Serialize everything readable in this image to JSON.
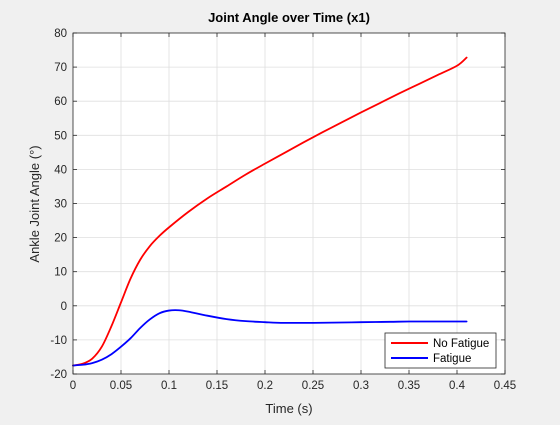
{
  "figure": {
    "background": "#f0f0f0"
  },
  "chart_data": {
    "type": "line",
    "title": "Joint Angle over Time (x1)",
    "xlabel": "Time (s)",
    "ylabel": "Ankle Joint Angle (°)",
    "xlim": [
      0,
      0.45
    ],
    "ylim": [
      -20,
      80
    ],
    "xticks": [
      0,
      0.05,
      0.1,
      0.15,
      0.2,
      0.25,
      0.3,
      0.35,
      0.4,
      0.45
    ],
    "xtick_labels": [
      "0",
      "0.05",
      "0.1",
      "0.15",
      "0.2",
      "0.25",
      "0.3",
      "0.35",
      "0.4",
      "0.45"
    ],
    "yticks": [
      -20,
      -10,
      0,
      10,
      20,
      30,
      40,
      50,
      60,
      70,
      80
    ],
    "ytick_labels": [
      "-20",
      "-10",
      "0",
      "10",
      "20",
      "30",
      "40",
      "50",
      "60",
      "70",
      "80"
    ],
    "grid": true,
    "legend_position": "bottom-right",
    "series": [
      {
        "name": "No Fatigue",
        "color": "#ff0000",
        "x": [
          0,
          0.01,
          0.02,
          0.03,
          0.04,
          0.05,
          0.06,
          0.07,
          0.08,
          0.09,
          0.1,
          0.12,
          0.14,
          0.16,
          0.18,
          0.2,
          0.22,
          0.24,
          0.26,
          0.28,
          0.3,
          0.32,
          0.34,
          0.36,
          0.38,
          0.4,
          0.41
        ],
        "y": [
          -17.5,
          -17,
          -15.5,
          -12,
          -6,
          1,
          8,
          13.5,
          17.5,
          20.5,
          23,
          27.5,
          31.5,
          35,
          38.5,
          41.7,
          44.8,
          47.9,
          50.9,
          53.8,
          56.7,
          59.5,
          62.3,
          65,
          67.7,
          70.4,
          72.8
        ]
      },
      {
        "name": "Fatigue",
        "color": "#0000ff",
        "x": [
          0,
          0.01,
          0.02,
          0.03,
          0.04,
          0.05,
          0.06,
          0.07,
          0.08,
          0.09,
          0.1,
          0.11,
          0.12,
          0.14,
          0.16,
          0.18,
          0.2,
          0.22,
          0.25,
          0.28,
          0.3,
          0.33,
          0.35,
          0.38,
          0.41
        ],
        "y": [
          -17.5,
          -17.3,
          -16.8,
          -15.8,
          -14.2,
          -12,
          -9.5,
          -6.5,
          -4,
          -2.2,
          -1.4,
          -1.3,
          -1.7,
          -2.9,
          -3.9,
          -4.5,
          -4.8,
          -5,
          -5,
          -4.9,
          -4.8,
          -4.7,
          -4.6,
          -4.6,
          -4.6
        ]
      }
    ]
  }
}
